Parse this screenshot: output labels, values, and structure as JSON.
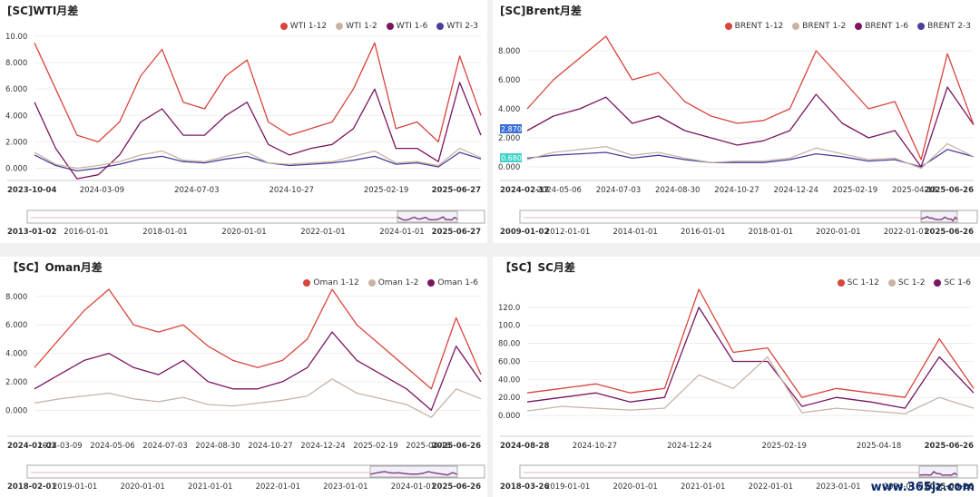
{
  "panels": [
    {
      "title": "[SC]WTI月差",
      "legend": [
        {
          "name": "WTI 1-12",
          "color": "#d9443c"
        },
        {
          "name": "WTI 1-2",
          "color": "#c8b4a6"
        },
        {
          "name": "WTI 1-6",
          "color": "#7a1560"
        },
        {
          "name": "WTI 2-3",
          "color": "#4a3f9a"
        }
      ],
      "badges": []
    },
    {
      "title": "[SC]Brent月差",
      "legend": [
        {
          "name": "BRENT 1-12",
          "color": "#d9443c"
        },
        {
          "name": "BRENT 1-2",
          "color": "#c8b4a6"
        },
        {
          "name": "BRENT 1-6",
          "color": "#7a1560"
        },
        {
          "name": "BRENT 2-3",
          "color": "#4a3f9a"
        }
      ],
      "badges": [
        {
          "text": "2.870",
          "color": "#3c6fd6"
        },
        {
          "text": "0.6800",
          "color": "#3fd3c8"
        }
      ]
    },
    {
      "title": "【SC】Oman月差",
      "legend": [
        {
          "name": "Oman 1-12",
          "color": "#d9443c"
        },
        {
          "name": "Oman 1-2",
          "color": "#c8b4a6"
        },
        {
          "name": "Oman 1-6",
          "color": "#7a1560"
        }
      ],
      "badges": []
    },
    {
      "title": "【SC】SC月差",
      "legend": [
        {
          "name": "SC 1-12",
          "color": "#d9443c"
        },
        {
          "name": "SC 1-2",
          "color": "#c8b4a6"
        },
        {
          "name": "SC 1-6",
          "color": "#7a1560"
        }
      ],
      "badges": []
    }
  ],
  "watermark": "www.365jz.com",
  "chart_data": [
    {
      "type": "line",
      "title": "[SC]WTI月差",
      "ylim": [
        -1,
        10
      ],
      "y_ticks": [
        "0.000",
        "2.000",
        "4.000",
        "6.000",
        "8.000",
        "10.00"
      ],
      "x_ticks": [
        "2023-10-04",
        "2024-03-09",
        "2024-07-03",
        "2024-10-27",
        "2025-02-19",
        "2025-06-27"
      ],
      "navigator_ticks": [
        "2013-01-02",
        "2016-01-01",
        "2018-01-01",
        "2020-01-01",
        "2022-01-01",
        "2024-01-01",
        "2025-06-27"
      ],
      "x": [
        "2023-10",
        "2023-11",
        "2023-12",
        "2024-01",
        "2024-02",
        "2024-03",
        "2024-04",
        "2024-05",
        "2024-06",
        "2024-07",
        "2024-08",
        "2024-09",
        "2024-10",
        "2024-11",
        "2024-12",
        "2025-01",
        "2025-02",
        "2025-03",
        "2025-04",
        "2025-05",
        "2025-06a",
        "2025-06b"
      ],
      "series": [
        {
          "name": "WTI 1-12",
          "values": [
            9.5,
            6.0,
            2.5,
            2.0,
            3.5,
            7.0,
            9.0,
            5.0,
            4.5,
            7.0,
            8.2,
            3.5,
            2.5,
            3.0,
            3.5,
            6.0,
            9.5,
            3.0,
            3.5,
            2.0,
            8.5,
            4.0
          ]
        },
        {
          "name": "WTI 1-2",
          "values": [
            1.2,
            0.3,
            0.0,
            0.2,
            0.5,
            1.0,
            1.3,
            0.6,
            0.5,
            0.9,
            1.2,
            0.4,
            0.3,
            0.4,
            0.5,
            0.9,
            1.3,
            0.4,
            0.5,
            0.2,
            1.5,
            0.8
          ]
        },
        {
          "name": "WTI 1-6",
          "values": [
            5.0,
            1.5,
            -0.8,
            -0.5,
            1.0,
            3.5,
            4.5,
            2.5,
            2.5,
            4.0,
            5.0,
            1.8,
            1.0,
            1.5,
            1.8,
            3.0,
            6.0,
            1.5,
            1.5,
            0.5,
            6.5,
            2.5
          ]
        },
        {
          "name": "WTI 2-3",
          "values": [
            1.0,
            0.2,
            -0.2,
            0.0,
            0.3,
            0.7,
            0.9,
            0.5,
            0.4,
            0.7,
            0.9,
            0.4,
            0.2,
            0.3,
            0.4,
            0.6,
            0.9,
            0.3,
            0.4,
            0.1,
            1.2,
            0.7
          ]
        }
      ]
    },
    {
      "type": "line",
      "title": "[SC]Brent月差",
      "ylim": [
        -0.5,
        9
      ],
      "y_ticks": [
        "0.000",
        "2.000",
        "4.000",
        "6.000",
        "8.000"
      ],
      "x_ticks": [
        "2024-02-17",
        "2024-05-06",
        "2024-07-03",
        "2024-08-30",
        "2024-10-27",
        "2024-12-24",
        "2025-02-19",
        "2025-04-18",
        "2025-06-26"
      ],
      "navigator_ticks": [
        "2009-01-02",
        "2012-01-01",
        "2014-01-01",
        "2016-01-01",
        "2018-01-01",
        "2020-01-01",
        "2022-01-01",
        "2025-06-26"
      ],
      "x": [
        "2024-02",
        "2024-03",
        "2024-04",
        "2024-05",
        "2024-06",
        "2024-07",
        "2024-08",
        "2024-09",
        "2024-10",
        "2024-11",
        "2024-12",
        "2025-01",
        "2025-02",
        "2025-03",
        "2025-04",
        "2025-05",
        "2025-06a",
        "2025-06b"
      ],
      "series": [
        {
          "name": "BRENT 1-12",
          "values": [
            4.0,
            6.0,
            7.5,
            9.0,
            6.0,
            6.5,
            4.5,
            3.5,
            3.0,
            3.2,
            4.0,
            8.0,
            6.0,
            4.0,
            4.5,
            0.5,
            7.8,
            2.9
          ]
        },
        {
          "name": "BRENT 1-2",
          "values": [
            0.5,
            1.0,
            1.2,
            1.4,
            0.8,
            1.0,
            0.6,
            0.3,
            0.4,
            0.4,
            0.6,
            1.3,
            0.9,
            0.5,
            0.6,
            -0.1,
            1.6,
            0.7
          ]
        },
        {
          "name": "BRENT 1-6",
          "values": [
            2.5,
            3.5,
            4.0,
            4.8,
            3.0,
            3.5,
            2.5,
            2.0,
            1.5,
            1.8,
            2.5,
            5.0,
            3.0,
            2.0,
            2.5,
            0.0,
            5.5,
            2.9
          ]
        },
        {
          "name": "BRENT 2-3",
          "values": [
            0.6,
            0.8,
            0.9,
            1.0,
            0.6,
            0.8,
            0.5,
            0.3,
            0.3,
            0.3,
            0.5,
            0.9,
            0.7,
            0.4,
            0.5,
            0.0,
            1.2,
            0.7
          ]
        }
      ]
    },
    {
      "type": "line",
      "title": "【SC】Oman月差",
      "ylim": [
        -1,
        8.5
      ],
      "y_ticks": [
        "0.000",
        "2.000",
        "4.000",
        "6.000",
        "8.000"
      ],
      "x_ticks": [
        "2024-01-03",
        "2024-03-09",
        "2024-05-06",
        "2024-07-03",
        "2024-08-30",
        "2024-10-27",
        "2024-12-24",
        "2025-02-19",
        "2025-04-18",
        "2025-06-26"
      ],
      "navigator_ticks": [
        "2018-02-01",
        "2019-01-01",
        "2020-01-01",
        "2021-01-01",
        "2022-01-01",
        "2023-01-01",
        "2024-01-01",
        "2025-06-26"
      ],
      "x": [
        "2024-01",
        "2024-02",
        "2024-03",
        "2024-04",
        "2024-05",
        "2024-06",
        "2024-07",
        "2024-08",
        "2024-09",
        "2024-10",
        "2024-11",
        "2024-12",
        "2025-01",
        "2025-02",
        "2025-03",
        "2025-04",
        "2025-05",
        "2025-06a",
        "2025-06b"
      ],
      "series": [
        {
          "name": "Oman 1-12",
          "values": [
            3.0,
            5.0,
            7.0,
            8.5,
            6.0,
            5.5,
            6.0,
            4.5,
            3.5,
            3.0,
            3.5,
            5.0,
            8.5,
            6.0,
            4.5,
            3.0,
            1.5,
            6.5,
            2.5
          ]
        },
        {
          "name": "Oman 1-2",
          "values": [
            0.5,
            0.8,
            1.0,
            1.2,
            0.8,
            0.6,
            0.9,
            0.4,
            0.3,
            0.5,
            0.7,
            1.0,
            2.2,
            1.2,
            0.8,
            0.4,
            -0.5,
            1.5,
            0.8
          ]
        },
        {
          "name": "Oman 1-6",
          "values": [
            1.5,
            2.5,
            3.5,
            4.0,
            3.0,
            2.5,
            3.5,
            2.0,
            1.5,
            1.5,
            2.0,
            3.0,
            5.5,
            3.5,
            2.5,
            1.5,
            0.0,
            4.5,
            2.0
          ]
        }
      ]
    },
    {
      "type": "line",
      "title": "【SC】SC月差",
      "ylim": [
        -10,
        140
      ],
      "y_ticks": [
        "0.000",
        "20.00",
        "40.00",
        "60.00",
        "80.00",
        "100.0",
        "120.0"
      ],
      "x_ticks": [
        "2024-08-28",
        "2024-10-27",
        "2024-12-24",
        "2025-02-19",
        "2025-04-18",
        "2025-06-26"
      ],
      "navigator_ticks": [
        "2018-03-26",
        "2019-01-01",
        "2020-01-01",
        "2021-01-01",
        "2022-01-01",
        "2023-01-01",
        "2024-01-01",
        "2025-06-26"
      ],
      "x": [
        "2024-08",
        "2024-09",
        "2024-10",
        "2024-11",
        "2024-12",
        "2025-01a",
        "2025-01b",
        "2025-02",
        "2025-02b",
        "2025-03",
        "2025-04",
        "2025-05",
        "2025-06a",
        "2025-06b"
      ],
      "series": [
        {
          "name": "SC 1-12",
          "values": [
            25,
            30,
            35,
            25,
            30,
            140,
            70,
            75,
            20,
            30,
            25,
            20,
            85,
            30
          ]
        },
        {
          "name": "SC 1-2",
          "values": [
            5,
            10,
            8,
            6,
            8,
            45,
            30,
            65,
            3,
            8,
            5,
            2,
            20,
            8
          ]
        },
        {
          "name": "SC 1-6",
          "values": [
            15,
            20,
            25,
            15,
            20,
            120,
            60,
            60,
            10,
            20,
            15,
            8,
            65,
            25
          ]
        }
      ]
    }
  ]
}
